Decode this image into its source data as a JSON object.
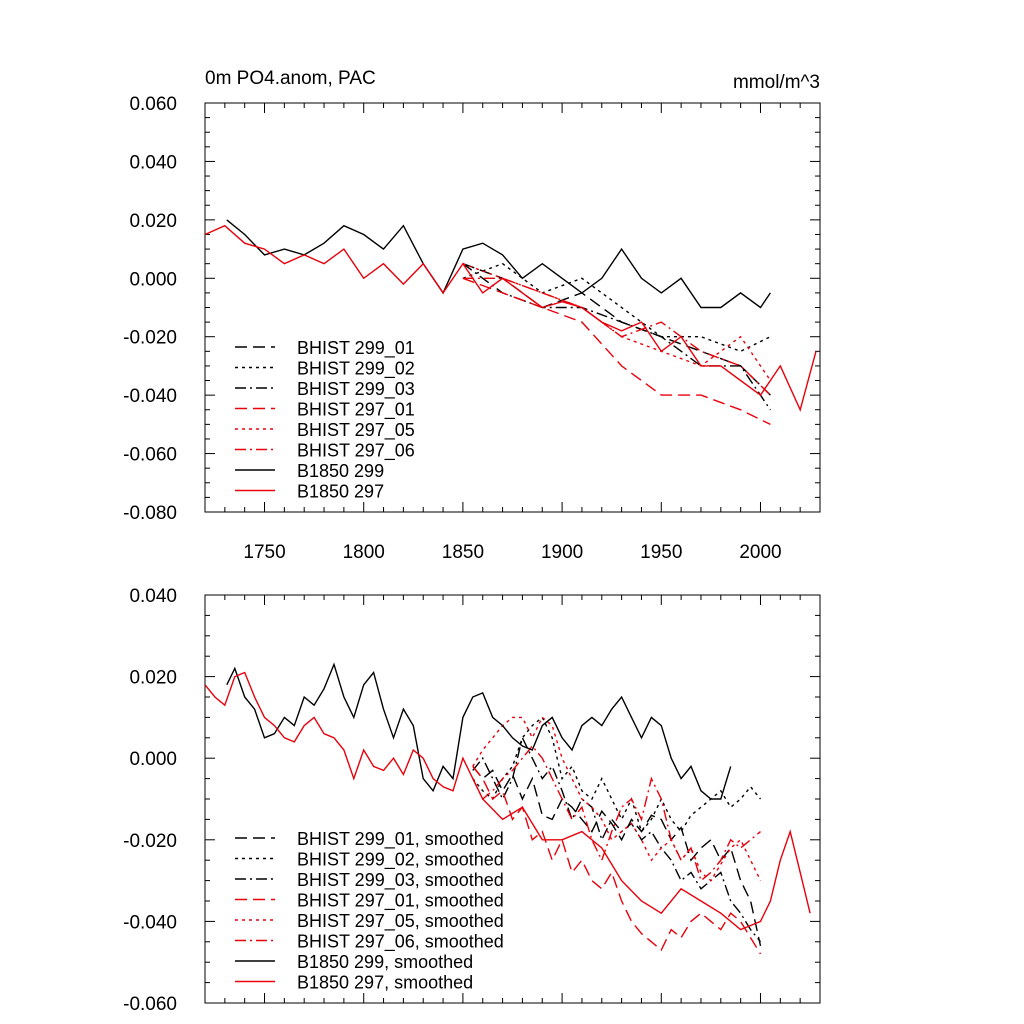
{
  "figure": {
    "title_left": "0m PO4.anom, PAC",
    "title_right": "mmol/m^3"
  },
  "chart_data": [
    {
      "type": "line",
      "title": "0m PO4.anom, PAC",
      "units": "mmol/m^3",
      "xlim": [
        1720,
        2030
      ],
      "ylim": [
        -0.08,
        0.06
      ],
      "xticks": [
        1750,
        1800,
        1850,
        1900,
        1950,
        2000
      ],
      "xtick_labels": [
        "1750",
        "1800",
        "1850",
        "1900",
        "1950",
        "2000"
      ],
      "yticks": [
        0.06,
        0.04,
        0.02,
        0.0,
        -0.02,
        -0.04,
        -0.06,
        -0.08
      ],
      "ytick_labels": [
        "0.060",
        "0.040",
        "0.020",
        "0.000",
        "-0.020",
        "-0.040",
        "-0.060",
        "-0.080"
      ],
      "legend_position": "bottom-left",
      "series": [
        {
          "name": "BHIST 299_01",
          "color": "#000000",
          "dash": "dash",
          "x": [
            1850,
            1870,
            1890,
            1910,
            1930,
            1950,
            1970,
            1990,
            2005
          ],
          "y": [
            0.005,
            0.0,
            -0.01,
            -0.005,
            -0.015,
            -0.02,
            -0.025,
            -0.03,
            -0.04
          ]
        },
        {
          "name": "BHIST 299_02",
          "color": "#000000",
          "dash": "dot",
          "x": [
            1850,
            1870,
            1890,
            1910,
            1930,
            1950,
            1970,
            1990,
            2005
          ],
          "y": [
            0.0,
            0.005,
            -0.005,
            0.0,
            -0.01,
            -0.02,
            -0.02,
            -0.025,
            -0.02
          ]
        },
        {
          "name": "BHIST 299_03",
          "color": "#000000",
          "dash": "dashdot",
          "x": [
            1850,
            1870,
            1890,
            1910,
            1930,
            1950,
            1970,
            1990,
            2005
          ],
          "y": [
            0.005,
            -0.005,
            -0.01,
            -0.01,
            -0.015,
            -0.02,
            -0.03,
            -0.03,
            -0.045
          ]
        },
        {
          "name": "BHIST 297_01",
          "color": "#e8000b",
          "dash": "dash",
          "x": [
            1850,
            1870,
            1890,
            1910,
            1930,
            1950,
            1970,
            1990,
            2005
          ],
          "y": [
            0.0,
            -0.005,
            -0.01,
            -0.015,
            -0.03,
            -0.04,
            -0.04,
            -0.045,
            -0.05
          ]
        },
        {
          "name": "BHIST 297_05",
          "color": "#e8000b",
          "dash": "dot",
          "x": [
            1850,
            1870,
            1890,
            1910,
            1930,
            1950,
            1970,
            1990,
            2005
          ],
          "y": [
            0.005,
            0.0,
            -0.005,
            -0.01,
            -0.02,
            -0.025,
            -0.03,
            -0.02,
            -0.035
          ]
        },
        {
          "name": "BHIST 297_06",
          "color": "#e8000b",
          "dash": "dashdot",
          "x": [
            1850,
            1870,
            1890,
            1910,
            1930,
            1950,
            1970,
            1990,
            2005
          ],
          "y": [
            0.0,
            0.0,
            -0.005,
            -0.01,
            -0.02,
            -0.015,
            -0.025,
            -0.03,
            -0.04
          ]
        },
        {
          "name": "B1850 299",
          "color": "#000000",
          "dash": "solid",
          "x": [
            1731,
            1740,
            1750,
            1760,
            1770,
            1780,
            1790,
            1800,
            1810,
            1820,
            1830,
            1840,
            1850,
            1860,
            1870,
            1880,
            1890,
            1900,
            1910,
            1920,
            1930,
            1940,
            1950,
            1960,
            1970,
            1980,
            1990,
            2000,
            2005
          ],
          "y": [
            0.02,
            0.015,
            0.008,
            0.01,
            0.008,
            0.012,
            0.018,
            0.015,
            0.01,
            0.018,
            0.005,
            -0.005,
            0.01,
            0.012,
            0.008,
            0.0,
            0.005,
            0.0,
            -0.005,
            0.0,
            0.01,
            0.0,
            -0.005,
            0.0,
            -0.01,
            -0.01,
            -0.005,
            -0.01,
            -0.005
          ]
        },
        {
          "name": "B1850 297",
          "color": "#e8000b",
          "dash": "solid",
          "x": [
            1720,
            1730,
            1740,
            1750,
            1760,
            1770,
            1780,
            1790,
            1800,
            1810,
            1820,
            1830,
            1840,
            1850,
            1860,
            1870,
            1880,
            1890,
            1900,
            1910,
            1920,
            1930,
            1940,
            1950,
            1960,
            1970,
            1980,
            1990,
            2000,
            2010,
            2020,
            2028
          ],
          "y": [
            0.015,
            0.018,
            0.012,
            0.01,
            0.005,
            0.008,
            0.005,
            0.01,
            0.0,
            0.005,
            -0.002,
            0.005,
            -0.005,
            0.005,
            -0.005,
            0.0,
            -0.005,
            -0.01,
            -0.008,
            -0.01,
            -0.015,
            -0.018,
            -0.015,
            -0.025,
            -0.02,
            -0.03,
            -0.03,
            -0.035,
            -0.04,
            -0.03,
            -0.045,
            -0.025
          ]
        }
      ]
    },
    {
      "type": "line",
      "xlim": [
        1720,
        2030
      ],
      "ylim": [
        -0.06,
        0.04
      ],
      "xticks": [
        1750,
        1800,
        1850,
        1900,
        1950,
        2000
      ],
      "yticks": [
        0.04,
        0.02,
        0.0,
        -0.02,
        -0.04,
        -0.06
      ],
      "ytick_labels": [
        "0.040",
        "0.020",
        "0.000",
        "-0.020",
        "-0.040",
        "-0.060"
      ],
      "legend_position": "bottom-left",
      "series": [
        {
          "name": "BHIST 299_01, smoothed",
          "color": "#000000",
          "dash": "dash",
          "x": [
            1855,
            1860,
            1865,
            1870,
            1875,
            1880,
            1885,
            1890,
            1895,
            1900,
            1905,
            1910,
            1915,
            1920,
            1925,
            1930,
            1935,
            1940,
            1945,
            1950,
            1955,
            1960,
            1965,
            1970,
            1975,
            1980,
            1985,
            1990,
            1995,
            2000
          ],
          "y": [
            -0.002,
            -0.005,
            -0.003,
            -0.008,
            -0.004,
            -0.01,
            -0.005,
            -0.014,
            -0.015,
            -0.01,
            -0.012,
            -0.015,
            -0.018,
            -0.013,
            -0.016,
            -0.02,
            -0.015,
            -0.018,
            -0.014,
            -0.015,
            -0.02,
            -0.017,
            -0.025,
            -0.022,
            -0.02,
            -0.025,
            -0.022,
            -0.03,
            -0.035,
            -0.046
          ]
        },
        {
          "name": "BHIST 299_02, smoothed",
          "color": "#000000",
          "dash": "dot",
          "x": [
            1855,
            1860,
            1865,
            1870,
            1875,
            1880,
            1885,
            1890,
            1895,
            1900,
            1905,
            1910,
            1915,
            1920,
            1925,
            1930,
            1935,
            1940,
            1945,
            1950,
            1955,
            1960,
            1965,
            1970,
            1975,
            1980,
            1985,
            1990,
            1995,
            2000
          ],
          "y": [
            -0.005,
            -0.008,
            -0.01,
            -0.005,
            -0.002,
            0.005,
            0.008,
            0.01,
            0.005,
            -0.005,
            -0.002,
            -0.008,
            -0.01,
            -0.005,
            -0.01,
            -0.015,
            -0.01,
            -0.018,
            -0.015,
            -0.01,
            -0.015,
            -0.018,
            -0.014,
            -0.012,
            -0.01,
            -0.008,
            -0.012,
            -0.01,
            -0.007,
            -0.01
          ]
        },
        {
          "name": "BHIST 299_03, smoothed",
          "color": "#000000",
          "dash": "dashdot",
          "x": [
            1855,
            1860,
            1865,
            1870,
            1875,
            1880,
            1885,
            1890,
            1895,
            1900,
            1905,
            1910,
            1915,
            1920,
            1925,
            1930,
            1935,
            1940,
            1945,
            1950,
            1955,
            1960,
            1965,
            1970,
            1975,
            1980,
            1985,
            1990,
            1995,
            2000
          ],
          "y": [
            -0.003,
            0.0,
            -0.005,
            -0.01,
            -0.005,
            0.005,
            0.0,
            -0.005,
            -0.002,
            -0.008,
            -0.015,
            -0.01,
            -0.012,
            -0.02,
            -0.015,
            -0.018,
            -0.016,
            -0.02,
            -0.018,
            -0.022,
            -0.025,
            -0.03,
            -0.028,
            -0.032,
            -0.03,
            -0.028,
            -0.035,
            -0.038,
            -0.042,
            -0.045
          ]
        },
        {
          "name": "BHIST 297_01, smoothed",
          "color": "#e8000b",
          "dash": "dash",
          "x": [
            1855,
            1860,
            1865,
            1870,
            1875,
            1880,
            1885,
            1890,
            1895,
            1900,
            1905,
            1910,
            1915,
            1920,
            1925,
            1930,
            1935,
            1940,
            1945,
            1950,
            1955,
            1960,
            1965,
            1970,
            1975,
            1980,
            1985,
            1990,
            1995,
            2000
          ],
          "y": [
            -0.002,
            -0.005,
            -0.01,
            -0.008,
            -0.015,
            -0.012,
            -0.02,
            -0.018,
            -0.025,
            -0.02,
            -0.028,
            -0.025,
            -0.03,
            -0.032,
            -0.028,
            -0.035,
            -0.04,
            -0.043,
            -0.045,
            -0.047,
            -0.042,
            -0.044,
            -0.04,
            -0.038,
            -0.04,
            -0.042,
            -0.038,
            -0.04,
            -0.044,
            -0.048
          ]
        },
        {
          "name": "BHIST 297_05, smoothed",
          "color": "#e8000b",
          "dash": "dot",
          "x": [
            1855,
            1860,
            1865,
            1870,
            1875,
            1880,
            1885,
            1890,
            1895,
            1900,
            1905,
            1910,
            1915,
            1920,
            1925,
            1930,
            1935,
            1940,
            1945,
            1950,
            1955,
            1960,
            1965,
            1970,
            1975,
            1980,
            1985,
            1990,
            1995,
            2000
          ],
          "y": [
            -0.002,
            0.002,
            0.005,
            0.008,
            0.01,
            0.01,
            0.005,
            0.01,
            0.008,
            0.0,
            -0.005,
            -0.01,
            -0.012,
            -0.015,
            -0.02,
            -0.018,
            -0.016,
            -0.02,
            -0.025,
            -0.022,
            -0.02,
            -0.025,
            -0.022,
            -0.028,
            -0.03,
            -0.026,
            -0.022,
            -0.02,
            -0.025,
            -0.03
          ]
        },
        {
          "name": "BHIST 297_06, smoothed",
          "color": "#e8000b",
          "dash": "dashdot",
          "x": [
            1855,
            1860,
            1865,
            1870,
            1875,
            1880,
            1885,
            1890,
            1895,
            1900,
            1905,
            1910,
            1915,
            1920,
            1925,
            1930,
            1935,
            1940,
            1945,
            1950,
            1955,
            1960,
            1965,
            1970,
            1975,
            1980,
            1985,
            1990,
            1995,
            2000
          ],
          "y": [
            -0.005,
            -0.01,
            -0.008,
            -0.005,
            -0.003,
            0.0,
            0.003,
            0.0,
            -0.005,
            -0.01,
            -0.015,
            -0.012,
            -0.02,
            -0.025,
            -0.018,
            -0.012,
            -0.01,
            -0.015,
            -0.005,
            -0.01,
            -0.02,
            -0.025,
            -0.022,
            -0.03,
            -0.028,
            -0.025,
            -0.02,
            -0.022,
            -0.02,
            -0.018
          ]
        },
        {
          "name": "B1850 299, smoothed",
          "color": "#000000",
          "dash": "solid",
          "x": [
            1731,
            1735,
            1740,
            1745,
            1750,
            1755,
            1760,
            1765,
            1770,
            1775,
            1780,
            1785,
            1790,
            1795,
            1800,
            1805,
            1810,
            1815,
            1820,
            1825,
            1830,
            1835,
            1840,
            1845,
            1850,
            1855,
            1860,
            1865,
            1870,
            1875,
            1880,
            1885,
            1890,
            1895,
            1900,
            1905,
            1910,
            1915,
            1920,
            1925,
            1930,
            1935,
            1940,
            1945,
            1950,
            1955,
            1960,
            1965,
            1970,
            1975,
            1980,
            1985
          ],
          "y": [
            0.018,
            0.022,
            0.015,
            0.012,
            0.005,
            0.006,
            0.01,
            0.008,
            0.015,
            0.013,
            0.017,
            0.023,
            0.015,
            0.01,
            0.018,
            0.021,
            0.012,
            0.005,
            0.012,
            0.008,
            -0.005,
            -0.008,
            -0.002,
            -0.005,
            0.01,
            0.015,
            0.016,
            0.01,
            0.008,
            0.005,
            0.003,
            0.002,
            0.008,
            0.01,
            0.005,
            0.002,
            0.008,
            0.01,
            0.008,
            0.012,
            0.015,
            0.01,
            0.005,
            0.01,
            0.008,
            0.0,
            -0.005,
            -0.002,
            -0.008,
            -0.01,
            -0.01,
            -0.002
          ]
        },
        {
          "name": "B1850 297, smoothed",
          "color": "#e8000b",
          "dash": "solid",
          "x": [
            1720,
            1725,
            1730,
            1735,
            1740,
            1745,
            1750,
            1755,
            1760,
            1765,
            1770,
            1775,
            1780,
            1785,
            1790,
            1795,
            1800,
            1805,
            1810,
            1815,
            1820,
            1825,
            1830,
            1835,
            1840,
            1845,
            1850,
            1855,
            1860,
            1870,
            1880,
            1890,
            1900,
            1910,
            1920,
            1930,
            1940,
            1950,
            1960,
            1970,
            1980,
            1990,
            2000,
            2005,
            2010,
            2015,
            2020,
            2025
          ],
          "y": [
            0.018,
            0.015,
            0.013,
            0.02,
            0.021,
            0.015,
            0.01,
            0.008,
            0.005,
            0.004,
            0.008,
            0.01,
            0.006,
            0.005,
            0.002,
            -0.005,
            0.002,
            -0.002,
            -0.003,
            0.0,
            -0.004,
            0.002,
            0.0,
            -0.005,
            -0.007,
            -0.008,
            0.0,
            -0.005,
            -0.01,
            -0.015,
            -0.012,
            -0.02,
            -0.02,
            -0.018,
            -0.022,
            -0.03,
            -0.035,
            -0.038,
            -0.032,
            -0.035,
            -0.038,
            -0.042,
            -0.04,
            -0.035,
            -0.025,
            -0.018,
            -0.028,
            -0.038
          ]
        }
      ]
    }
  ]
}
